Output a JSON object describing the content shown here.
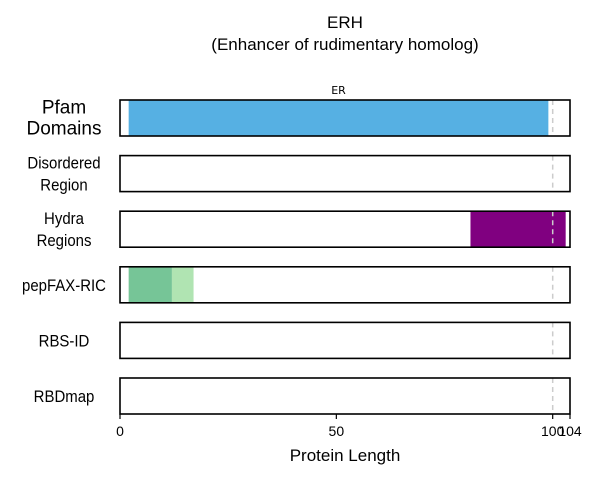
{
  "chart_data": {
    "type": "bar",
    "title": "ERH",
    "subtitle": "(Enhancer of rudimentary homolog)",
    "xlabel": "Protein Length",
    "xlim": [
      0,
      104
    ],
    "xticks": [
      "0",
      "50",
      "100",
      "104"
    ],
    "reference_line_x": 100,
    "rows": [
      {
        "label": "Pfam\nDomains",
        "emphasis": true,
        "segments": [
          {
            "start": 2,
            "end": 99,
            "color": "#56B0E3",
            "label": "ER"
          }
        ]
      },
      {
        "label": "Disordered\nRegion",
        "segments": []
      },
      {
        "label": "Hydra\nRegions",
        "segments": [
          {
            "start": 81,
            "end": 103,
            "color": "#800080"
          }
        ]
      },
      {
        "label": "pepFAX-RIC",
        "segments": [
          {
            "start": 2,
            "end": 12,
            "color": "#76C597"
          },
          {
            "start": 12,
            "end": 17,
            "color": "#B0E4B2"
          }
        ]
      },
      {
        "label": "RBS-ID",
        "segments": []
      },
      {
        "label": "RBDmap",
        "segments": []
      }
    ]
  }
}
